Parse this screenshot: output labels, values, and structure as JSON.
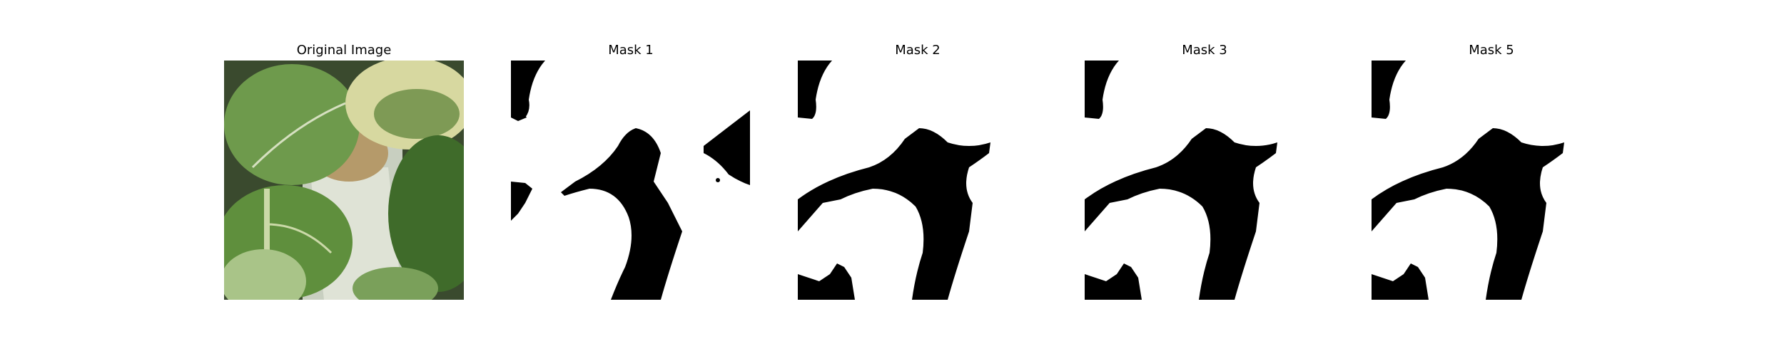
{
  "panels": [
    {
      "title": "Original Image"
    },
    {
      "title": "Mask 1"
    },
    {
      "title": "Mask 2"
    },
    {
      "title": "Mask 3"
    },
    {
      "title": "Mask 5"
    }
  ],
  "colors": {
    "mask_fg": "#000000",
    "mask_bg": "#ffffff",
    "leaf_dark": "#3f6b2a",
    "leaf_mid": "#6e9a4c",
    "leaf_light": "#a9c488",
    "variegated": "#d7d8a0",
    "dry_leaf": "#b59a6a",
    "background_gray": "#c8cfc0"
  }
}
